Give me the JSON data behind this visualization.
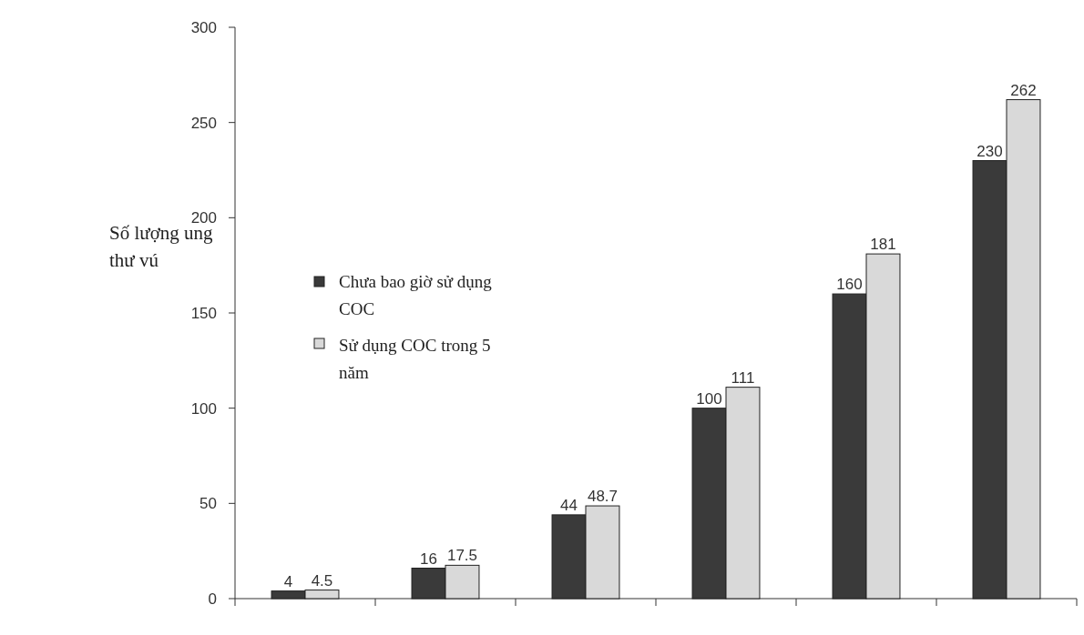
{
  "chart_data": {
    "type": "bar",
    "ylabel": "Số lượng ung thư vú",
    "categories": [
      null,
      null,
      null,
      null,
      null,
      null
    ],
    "series": [
      {
        "name": "Chưa bao giờ sử dụng  COC",
        "color": "#3a3a3a",
        "values": [
          4,
          16,
          44,
          100,
          160,
          230
        ]
      },
      {
        "name": "Sử dụng COC trong 5 năm",
        "color": "#d9d9d9",
        "values": [
          4.5,
          17.5,
          48.7,
          111,
          181,
          262
        ]
      }
    ],
    "ylim": [
      0,
      300
    ],
    "yticks": [
      0,
      50,
      100,
      150,
      200,
      250,
      300
    ],
    "data_labels": true,
    "legend": "left",
    "grid": false
  }
}
